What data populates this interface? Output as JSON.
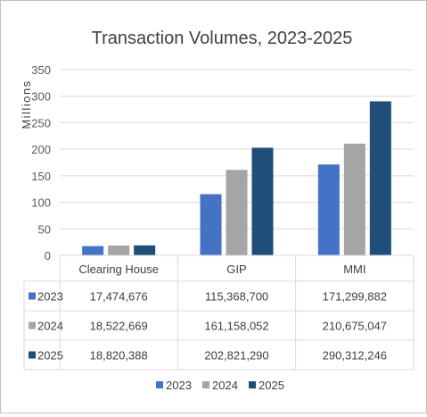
{
  "chart_data": {
    "type": "bar",
    "title": "Transaction Volumes, 2023-2025",
    "ylabel": "Millions",
    "xlabel": "",
    "ylim": [
      0,
      350
    ],
    "yticks": [
      0,
      50,
      100,
      150,
      200,
      250,
      300,
      350
    ],
    "grid": true,
    "legend_position": "bottom",
    "categories": [
      "Clearing House",
      "GIP",
      "MMI"
    ],
    "series": [
      {
        "name": "2023",
        "color": "#4472c4",
        "values": [
          17.474676,
          115.3687,
          171.299882
        ],
        "labels": [
          "17,474,676",
          "115,368,700",
          "171,299,882"
        ]
      },
      {
        "name": "2024",
        "color": "#a5a5a5",
        "values": [
          18.522669,
          161.158052,
          210.675047
        ],
        "labels": [
          "18,522,669",
          "161,158,052",
          "210,675,047"
        ]
      },
      {
        "name": "2025",
        "color": "#1f4e79",
        "values": [
          18.820388,
          202.82129,
          290.312246
        ],
        "labels": [
          "18,820,388",
          "202,821,290",
          "290,312,246"
        ]
      }
    ]
  }
}
